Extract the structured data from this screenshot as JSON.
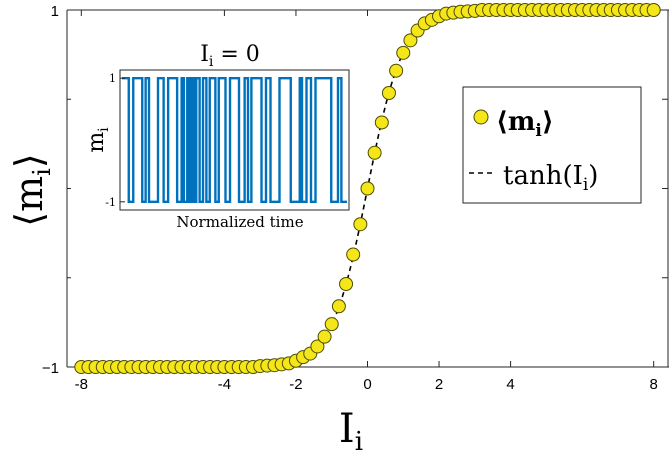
{
  "chart_data": [
    {
      "type": "scatter",
      "xlabel": "I",
      "xlabel_sub": "i",
      "ylabel": "⟨m",
      "ylabel_sub": "i",
      "ylabel_close": "⟩",
      "xlim": [
        -8.4,
        8.4
      ],
      "ylim": [
        -1,
        1
      ],
      "x_ticks": [
        -8,
        -4,
        -2,
        0,
        2,
        4,
        8
      ],
      "x_tick_labels": [
        "-8",
        "-4",
        "-2",
        "0",
        "2",
        "4",
        "8"
      ],
      "y_ticks": [
        -1,
        1
      ],
      "y_tick_labels": [
        "−1",
        "1"
      ],
      "grid": false,
      "legend": {
        "placement": "right",
        "entries": [
          {
            "label": "⟨m",
            "sub": "i",
            "close": "⟩",
            "marker": "circle",
            "color": "#f5e61a"
          },
          {
            "label": "tanh(I",
            "sub": "i",
            "close": ")",
            "marker": "dashed-line",
            "color": "#000000"
          }
        ]
      },
      "series": [
        {
          "name": "⟨mᵢ⟩",
          "marker_color": "#f5e61a",
          "points": [
            [
              -8.0,
              -1.0
            ],
            [
              -7.8,
              -1.0
            ],
            [
              -7.6,
              -1.0
            ],
            [
              -7.4,
              -1.0
            ],
            [
              -7.2,
              -1.0
            ],
            [
              -7.0,
              -1.0
            ],
            [
              -6.8,
              -1.0
            ],
            [
              -6.6,
              -1.0
            ],
            [
              -6.4,
              -1.0
            ],
            [
              -6.2,
              -1.0
            ],
            [
              -6.0,
              -1.0
            ],
            [
              -5.8,
              -1.0
            ],
            [
              -5.6,
              -1.0
            ],
            [
              -5.4,
              -1.0
            ],
            [
              -5.2,
              -1.0
            ],
            [
              -5.0,
              -1.0
            ],
            [
              -4.8,
              -1.0
            ],
            [
              -4.6,
              -1.0
            ],
            [
              -4.4,
              -1.0
            ],
            [
              -4.2,
              -1.0
            ],
            [
              -4.0,
              -1.0
            ],
            [
              -3.8,
              -1.0
            ],
            [
              -3.6,
              -1.0
            ],
            [
              -3.4,
              -1.0
            ],
            [
              -3.2,
              -1.0
            ],
            [
              -3.0,
              -0.995
            ],
            [
              -2.8,
              -0.992
            ],
            [
              -2.6,
              -0.99
            ],
            [
              -2.4,
              -0.985
            ],
            [
              -2.2,
              -0.98
            ],
            [
              -2.0,
              -0.965
            ],
            [
              -1.8,
              -0.945
            ],
            [
              -1.6,
              -0.925
            ],
            [
              -1.4,
              -0.885
            ],
            [
              -1.2,
              -0.83
            ],
            [
              -1.0,
              -0.76
            ],
            [
              -0.8,
              -0.66
            ],
            [
              -0.6,
              -0.535
            ],
            [
              -0.4,
              -0.37
            ],
            [
              -0.2,
              -0.2
            ],
            [
              0.0,
              0.0
            ],
            [
              0.2,
              0.2
            ],
            [
              0.4,
              0.37
            ],
            [
              0.6,
              0.535
            ],
            [
              0.8,
              0.66
            ],
            [
              1.0,
              0.76
            ],
            [
              1.2,
              0.83
            ],
            [
              1.4,
              0.885
            ],
            [
              1.6,
              0.925
            ],
            [
              1.8,
              0.945
            ],
            [
              2.0,
              0.965
            ],
            [
              2.2,
              0.98
            ],
            [
              2.4,
              0.985
            ],
            [
              2.6,
              0.99
            ],
            [
              2.8,
              0.992
            ],
            [
              3.0,
              0.995
            ],
            [
              3.2,
              1.0
            ],
            [
              3.4,
              1.0
            ],
            [
              3.6,
              1.0
            ],
            [
              3.8,
              1.0
            ],
            [
              4.0,
              1.0
            ],
            [
              4.2,
              1.0
            ],
            [
              4.4,
              1.0
            ],
            [
              4.6,
              1.0
            ],
            [
              4.8,
              1.0
            ],
            [
              5.0,
              1.0
            ],
            [
              5.2,
              1.0
            ],
            [
              5.4,
              1.0
            ],
            [
              5.6,
              1.0
            ],
            [
              5.8,
              1.0
            ],
            [
              6.0,
              1.0
            ],
            [
              6.2,
              1.0
            ],
            [
              6.4,
              1.0
            ],
            [
              6.6,
              1.0
            ],
            [
              6.8,
              1.0
            ],
            [
              7.0,
              1.0
            ],
            [
              7.2,
              1.0
            ],
            [
              7.4,
              1.0
            ],
            [
              7.6,
              1.0
            ],
            [
              7.8,
              1.0
            ],
            [
              8.0,
              1.0
            ]
          ]
        },
        {
          "name": "tanh(Iᵢ)",
          "line_style": "dashed",
          "color": "#000000",
          "function": "tanh",
          "x_range": [
            -8,
            8
          ]
        }
      ]
    },
    {
      "type": "line",
      "title": "I",
      "title_sub": "i",
      "title_rest": " = 0",
      "xlabel": "Normalized time",
      "ylabel": "m",
      "ylabel_sub": "i",
      "y_ticks": [
        -1,
        1
      ],
      "y_tick_labels": [
        "-1",
        "1"
      ],
      "ylim": [
        -1.1,
        1.1
      ],
      "xlim": [
        0,
        1
      ],
      "color": "#0072bd",
      "transitions": [
        0.03,
        0.05,
        0.09,
        0.105,
        0.12,
        0.16,
        0.185,
        0.205,
        0.245,
        0.265,
        0.275,
        0.29,
        0.3,
        0.31,
        0.32,
        0.33,
        0.345,
        0.36,
        0.375,
        0.39,
        0.415,
        0.43,
        0.46,
        0.48,
        0.52,
        0.545,
        0.56,
        0.575,
        0.62,
        0.64,
        0.66,
        0.7,
        0.75,
        0.79,
        0.8,
        0.82,
        0.84,
        0.86,
        0.93,
        0.96,
        0.975
      ],
      "start_state": 1
    }
  ]
}
